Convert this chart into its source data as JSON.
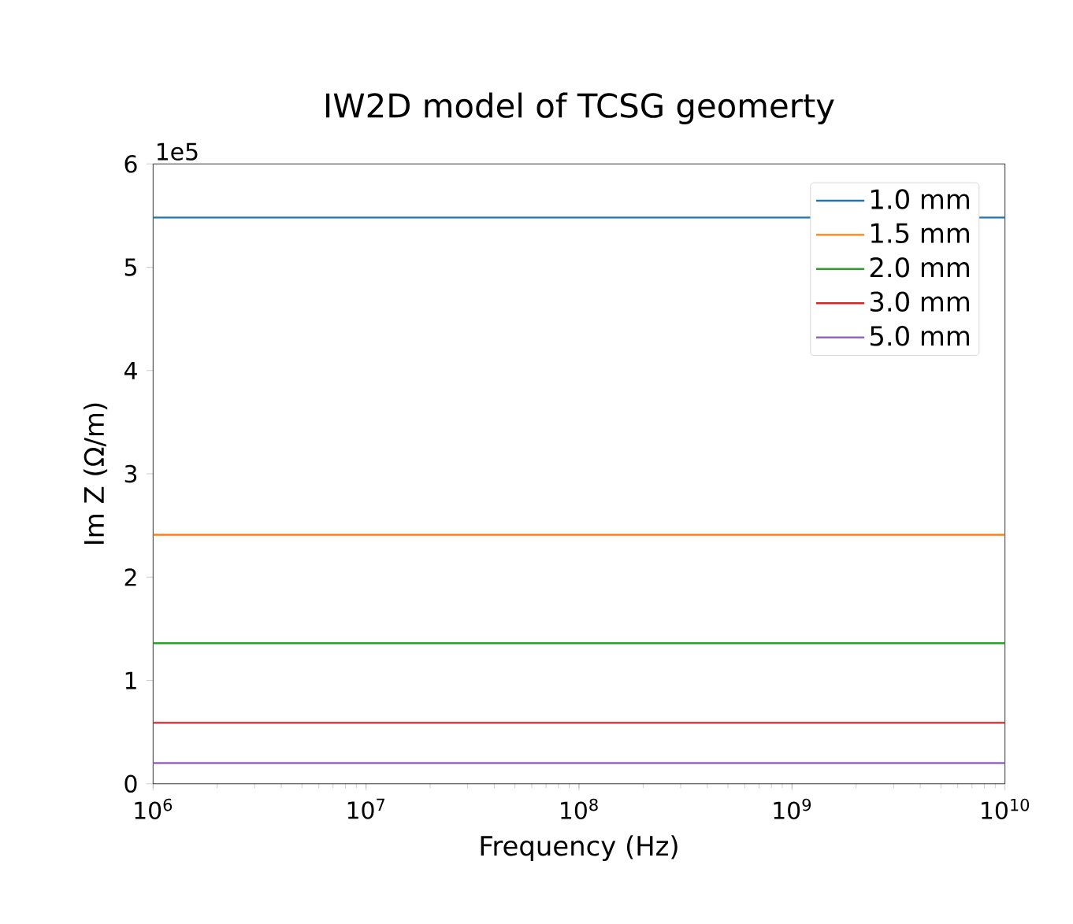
{
  "chart_data": {
    "type": "line",
    "title": "IW2D model of TCSG geomerty",
    "xlabel": "Frequency (Hz)",
    "ylabel": "Im Z (Ω/m)",
    "annotations": [
      "1e5"
    ],
    "x": [
      1000000,
      10000000000
    ],
    "series": [
      {
        "name": "1.0 mm",
        "color": "#1f77b4",
        "values": [
          5.48,
          5.48
        ]
      },
      {
        "name": "1.5 mm",
        "color": "#ff7f0e",
        "values": [
          2.41,
          2.41
        ]
      },
      {
        "name": "2.0 mm",
        "color": "#2ca02c",
        "values": [
          1.36,
          1.36
        ]
      },
      {
        "name": "3.0 mm",
        "color": "#d62728",
        "values": [
          0.59,
          0.59
        ]
      },
      {
        "name": "5.0 mm",
        "color": "#9467bd",
        "values": [
          0.2,
          0.2
        ]
      }
    ],
    "log": "x",
    "xlim": [
      1000000,
      10000000000
    ],
    "xticks": [
      {
        "value": 1000000,
        "label": "10$^{6}$"
      },
      {
        "value": 10000000,
        "label": "10$^{7}$"
      },
      {
        "value": 100000000,
        "label": "10$^{8}$"
      },
      {
        "value": 1000000000,
        "label": "10$^{9}$"
      },
      {
        "value": 10000000000,
        "label": "10$^{10}$"
      }
    ],
    "ylim": [
      0,
      6
    ],
    "yticks": [
      0,
      1,
      2,
      3,
      4,
      5,
      6
    ],
    "legend": "top right",
    "grid": false,
    "marker": "none",
    "line_style": "solid"
  }
}
